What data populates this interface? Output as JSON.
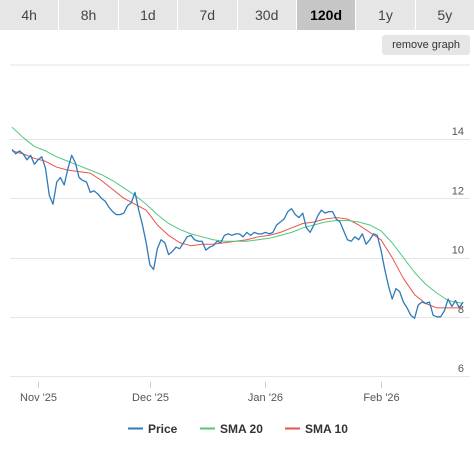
{
  "tabs": [
    {
      "label": "4h"
    },
    {
      "label": "8h"
    },
    {
      "label": "1d"
    },
    {
      "label": "7d"
    },
    {
      "label": "30d"
    },
    {
      "label": "120d",
      "active": true
    },
    {
      "label": "1y"
    },
    {
      "label": "5y"
    }
  ],
  "remove_graph_label": "remove graph",
  "colors": {
    "price": "#2f7ab8",
    "sma20": "#4fc97e",
    "sma10": "#e8524a",
    "grid": "#e6e6e6"
  },
  "chart_data": {
    "type": "line",
    "x_labels": [
      "Nov '25",
      "Dec '25",
      "Jan '26",
      "Feb '26"
    ],
    "x_label_dates": [
      "2025-11-01",
      "2025-12-01",
      "2026-01-01",
      "2026-02-01"
    ],
    "x_range": [
      "2025-10-25",
      "2026-02-23"
    ],
    "y_ticks": [
      6,
      8,
      10,
      12,
      14
    ],
    "ylim": [
      5.8,
      16.6
    ],
    "grid": true,
    "legend_position": "bottom",
    "series": [
      {
        "name": "Price",
        "color": "#2f7ab8",
        "points": [
          [
            "2025-10-25",
            13.65
          ],
          [
            "2025-10-26",
            13.5
          ],
          [
            "2025-10-27",
            13.6
          ],
          [
            "2025-10-28",
            13.5
          ],
          [
            "2025-10-29",
            13.3
          ],
          [
            "2025-10-30",
            13.45
          ],
          [
            "2025-10-31",
            13.15
          ],
          [
            "2025-11-01",
            13.3
          ],
          [
            "2025-11-02",
            13.4
          ],
          [
            "2025-11-03",
            13.0
          ],
          [
            "2025-11-04",
            12.1
          ],
          [
            "2025-11-05",
            11.8
          ],
          [
            "2025-11-06",
            12.55
          ],
          [
            "2025-11-07",
            12.7
          ],
          [
            "2025-11-08",
            12.45
          ],
          [
            "2025-11-09",
            13.0
          ],
          [
            "2025-11-10",
            13.45
          ],
          [
            "2025-11-11",
            13.2
          ],
          [
            "2025-11-12",
            12.7
          ],
          [
            "2025-11-13",
            12.6
          ],
          [
            "2025-11-14",
            12.55
          ],
          [
            "2025-11-15",
            12.2
          ],
          [
            "2025-11-16",
            12.25
          ],
          [
            "2025-11-17",
            12.15
          ],
          [
            "2025-11-18",
            12.0
          ],
          [
            "2025-11-19",
            11.9
          ],
          [
            "2025-11-20",
            11.7
          ],
          [
            "2025-11-21",
            11.55
          ],
          [
            "2025-11-22",
            11.45
          ],
          [
            "2025-11-23",
            11.45
          ],
          [
            "2025-11-24",
            11.5
          ],
          [
            "2025-11-25",
            11.75
          ],
          [
            "2025-11-26",
            11.85
          ],
          [
            "2025-11-27",
            12.2
          ],
          [
            "2025-11-28",
            11.6
          ],
          [
            "2025-11-29",
            11.1
          ],
          [
            "2025-11-30",
            10.5
          ],
          [
            "2025-12-01",
            9.75
          ],
          [
            "2025-12-02",
            9.6
          ],
          [
            "2025-12-03",
            10.3
          ],
          [
            "2025-12-04",
            10.6
          ],
          [
            "2025-12-05",
            10.5
          ],
          [
            "2025-12-06",
            10.1
          ],
          [
            "2025-12-07",
            10.2
          ],
          [
            "2025-12-08",
            10.35
          ],
          [
            "2025-12-09",
            10.3
          ],
          [
            "2025-12-10",
            10.5
          ],
          [
            "2025-12-11",
            10.7
          ],
          [
            "2025-12-12",
            10.75
          ],
          [
            "2025-12-13",
            10.6
          ],
          [
            "2025-12-14",
            10.55
          ],
          [
            "2025-12-15",
            10.55
          ],
          [
            "2025-12-16",
            10.25
          ],
          [
            "2025-12-17",
            10.35
          ],
          [
            "2025-12-18",
            10.4
          ],
          [
            "2025-12-19",
            10.55
          ],
          [
            "2025-12-20",
            10.5
          ],
          [
            "2025-12-21",
            10.75
          ],
          [
            "2025-12-22",
            10.8
          ],
          [
            "2025-12-23",
            10.75
          ],
          [
            "2025-12-24",
            10.8
          ],
          [
            "2025-12-25",
            10.8
          ],
          [
            "2025-12-26",
            10.7
          ],
          [
            "2025-12-27",
            10.85
          ],
          [
            "2025-12-28",
            10.75
          ],
          [
            "2025-12-29",
            10.85
          ],
          [
            "2025-12-30",
            10.8
          ],
          [
            "2025-12-31",
            10.8
          ],
          [
            "2026-01-01",
            10.85
          ],
          [
            "2026-01-02",
            10.8
          ],
          [
            "2026-01-03",
            10.85
          ],
          [
            "2026-01-04",
            11.1
          ],
          [
            "2026-01-05",
            11.2
          ],
          [
            "2026-01-06",
            11.3
          ],
          [
            "2026-01-07",
            11.55
          ],
          [
            "2026-01-08",
            11.65
          ],
          [
            "2026-01-09",
            11.45
          ],
          [
            "2026-01-10",
            11.35
          ],
          [
            "2026-01-11",
            11.5
          ],
          [
            "2026-01-12",
            11.0
          ],
          [
            "2026-01-13",
            10.85
          ],
          [
            "2026-01-14",
            11.1
          ],
          [
            "2026-01-15",
            11.4
          ],
          [
            "2026-01-16",
            11.6
          ],
          [
            "2026-01-17",
            11.5
          ],
          [
            "2026-01-18",
            11.55
          ],
          [
            "2026-01-19",
            11.55
          ],
          [
            "2026-01-20",
            11.3
          ],
          [
            "2026-01-21",
            11.2
          ],
          [
            "2026-01-22",
            10.9
          ],
          [
            "2026-01-23",
            10.6
          ],
          [
            "2026-01-24",
            10.55
          ],
          [
            "2026-01-25",
            10.7
          ],
          [
            "2026-01-26",
            10.6
          ],
          [
            "2026-01-27",
            10.8
          ],
          [
            "2026-01-28",
            10.45
          ],
          [
            "2026-01-29",
            10.6
          ],
          [
            "2026-01-30",
            10.8
          ],
          [
            "2026-01-31",
            10.75
          ],
          [
            "2026-02-01",
            10.25
          ],
          [
            "2026-02-02",
            9.6
          ],
          [
            "2026-02-03",
            9.05
          ],
          [
            "2026-02-04",
            8.6
          ],
          [
            "2026-02-05",
            8.95
          ],
          [
            "2026-02-06",
            8.85
          ],
          [
            "2026-02-07",
            8.5
          ],
          [
            "2026-02-08",
            8.3
          ],
          [
            "2026-02-09",
            8.05
          ],
          [
            "2026-02-10",
            7.95
          ],
          [
            "2026-02-11",
            8.4
          ],
          [
            "2026-02-12",
            8.5
          ],
          [
            "2026-02-13",
            8.45
          ],
          [
            "2026-02-14",
            8.5
          ],
          [
            "2026-02-15",
            8.05
          ],
          [
            "2026-02-16",
            8.0
          ],
          [
            "2026-02-17",
            8.0
          ],
          [
            "2026-02-18",
            8.2
          ],
          [
            "2026-02-19",
            8.6
          ],
          [
            "2026-02-20",
            8.35
          ],
          [
            "2026-02-21",
            8.55
          ],
          [
            "2026-02-22",
            8.3
          ],
          [
            "2026-02-23",
            8.5
          ]
        ]
      },
      {
        "name": "SMA 20",
        "color": "#4fc97e",
        "points": [
          [
            "2025-10-25",
            14.4
          ],
          [
            "2025-10-28",
            14.05
          ],
          [
            "2025-10-31",
            13.75
          ],
          [
            "2025-11-03",
            13.6
          ],
          [
            "2025-11-06",
            13.4
          ],
          [
            "2025-11-09",
            13.25
          ],
          [
            "2025-11-12",
            13.1
          ],
          [
            "2025-11-15",
            12.95
          ],
          [
            "2025-11-18",
            12.8
          ],
          [
            "2025-11-21",
            12.6
          ],
          [
            "2025-11-24",
            12.35
          ],
          [
            "2025-11-27",
            12.1
          ],
          [
            "2025-11-30",
            11.8
          ],
          [
            "2025-12-03",
            11.45
          ],
          [
            "2025-12-06",
            11.15
          ],
          [
            "2025-12-09",
            10.95
          ],
          [
            "2025-12-12",
            10.8
          ],
          [
            "2025-12-15",
            10.7
          ],
          [
            "2025-12-18",
            10.6
          ],
          [
            "2025-12-21",
            10.55
          ],
          [
            "2025-12-24",
            10.55
          ],
          [
            "2025-12-27",
            10.55
          ],
          [
            "2025-12-30",
            10.6
          ],
          [
            "2026-01-02",
            10.65
          ],
          [
            "2026-01-05",
            10.75
          ],
          [
            "2026-01-08",
            10.85
          ],
          [
            "2026-01-11",
            11.0
          ],
          [
            "2026-01-14",
            11.1
          ],
          [
            "2026-01-17",
            11.2
          ],
          [
            "2026-01-20",
            11.25
          ],
          [
            "2026-01-23",
            11.25
          ],
          [
            "2026-01-26",
            11.2
          ],
          [
            "2026-01-29",
            11.1
          ],
          [
            "2026-02-01",
            10.9
          ],
          [
            "2026-02-04",
            10.5
          ],
          [
            "2026-02-07",
            10.0
          ],
          [
            "2026-02-10",
            9.5
          ],
          [
            "2026-02-13",
            9.1
          ],
          [
            "2026-02-16",
            8.8
          ],
          [
            "2026-02-19",
            8.55
          ],
          [
            "2026-02-23",
            8.45
          ]
        ]
      },
      {
        "name": "SMA 10",
        "color": "#e8524a",
        "points": [
          [
            "2025-10-25",
            13.6
          ],
          [
            "2025-10-28",
            13.5
          ],
          [
            "2025-10-31",
            13.35
          ],
          [
            "2025-11-03",
            13.25
          ],
          [
            "2025-11-06",
            13.05
          ],
          [
            "2025-11-09",
            12.95
          ],
          [
            "2025-11-12",
            12.9
          ],
          [
            "2025-11-15",
            12.85
          ],
          [
            "2025-11-18",
            12.6
          ],
          [
            "2025-11-21",
            12.3
          ],
          [
            "2025-11-24",
            12.0
          ],
          [
            "2025-11-27",
            11.8
          ],
          [
            "2025-11-30",
            11.6
          ],
          [
            "2025-12-03",
            11.1
          ],
          [
            "2025-12-06",
            10.75
          ],
          [
            "2025-12-09",
            10.5
          ],
          [
            "2025-12-12",
            10.4
          ],
          [
            "2025-12-15",
            10.45
          ],
          [
            "2025-12-18",
            10.45
          ],
          [
            "2025-12-21",
            10.5
          ],
          [
            "2025-12-24",
            10.55
          ],
          [
            "2025-12-27",
            10.6
          ],
          [
            "2025-12-30",
            10.7
          ],
          [
            "2026-01-02",
            10.75
          ],
          [
            "2026-01-05",
            10.85
          ],
          [
            "2026-01-08",
            11.0
          ],
          [
            "2026-01-11",
            11.15
          ],
          [
            "2026-01-14",
            11.2
          ],
          [
            "2026-01-17",
            11.3
          ],
          [
            "2026-01-20",
            11.35
          ],
          [
            "2026-01-23",
            11.3
          ],
          [
            "2026-01-26",
            11.1
          ],
          [
            "2026-01-29",
            10.85
          ],
          [
            "2026-02-01",
            10.6
          ],
          [
            "2026-02-04",
            10.0
          ],
          [
            "2026-02-07",
            9.3
          ],
          [
            "2026-02-10",
            8.75
          ],
          [
            "2026-02-13",
            8.45
          ],
          [
            "2026-02-16",
            8.3
          ],
          [
            "2026-02-19",
            8.3
          ],
          [
            "2026-02-23",
            8.3
          ]
        ]
      }
    ]
  }
}
